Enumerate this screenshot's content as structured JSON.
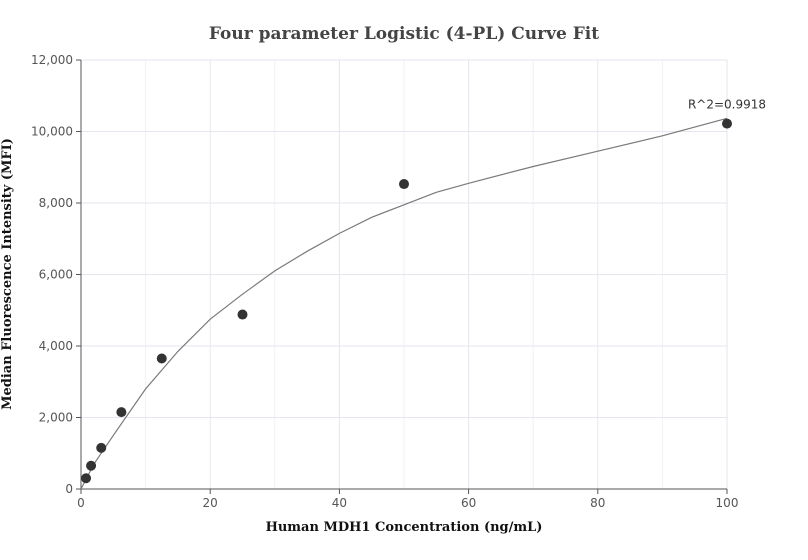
{
  "chart_data": {
    "type": "scatter",
    "title": "Four parameter Logistic (4-PL) Curve Fit",
    "xlabel": "Human MDH1 Concentration (ng/mL)",
    "ylabel": "Median Fluorescence Intensity (MFI)",
    "xlim": [
      0,
      100
    ],
    "ylim": [
      0,
      12000
    ],
    "xticks": [
      0,
      20,
      40,
      60,
      80,
      100
    ],
    "yticks": [
      0,
      2000,
      4000,
      6000,
      8000,
      10000,
      12000
    ],
    "ytick_labels": [
      "0",
      "2,000",
      "4,000",
      "6,000",
      "8,000",
      "10,000",
      "12,000"
    ],
    "grid": true,
    "series": [
      {
        "type": "scatter",
        "x": [
          0.78,
          1.56,
          3.13,
          6.25,
          12.5,
          25,
          50,
          100
        ],
        "y": [
          300,
          650,
          1150,
          2150,
          3650,
          4880,
          8530,
          10220
        ],
        "color": "#333333"
      },
      {
        "type": "line",
        "x": [
          0,
          2,
          5,
          10,
          15,
          20,
          25,
          30,
          35,
          40,
          45,
          50,
          55,
          60,
          70,
          80,
          90,
          100
        ],
        "y": [
          0,
          700,
          1500,
          2800,
          3850,
          4750,
          5450,
          6100,
          6650,
          7150,
          7600,
          7950,
          8300,
          8550,
          9020,
          9450,
          9880,
          10370
        ],
        "color": "#7a7a7a"
      }
    ],
    "annotation": {
      "text": "R^2=0.9918"
    }
  }
}
